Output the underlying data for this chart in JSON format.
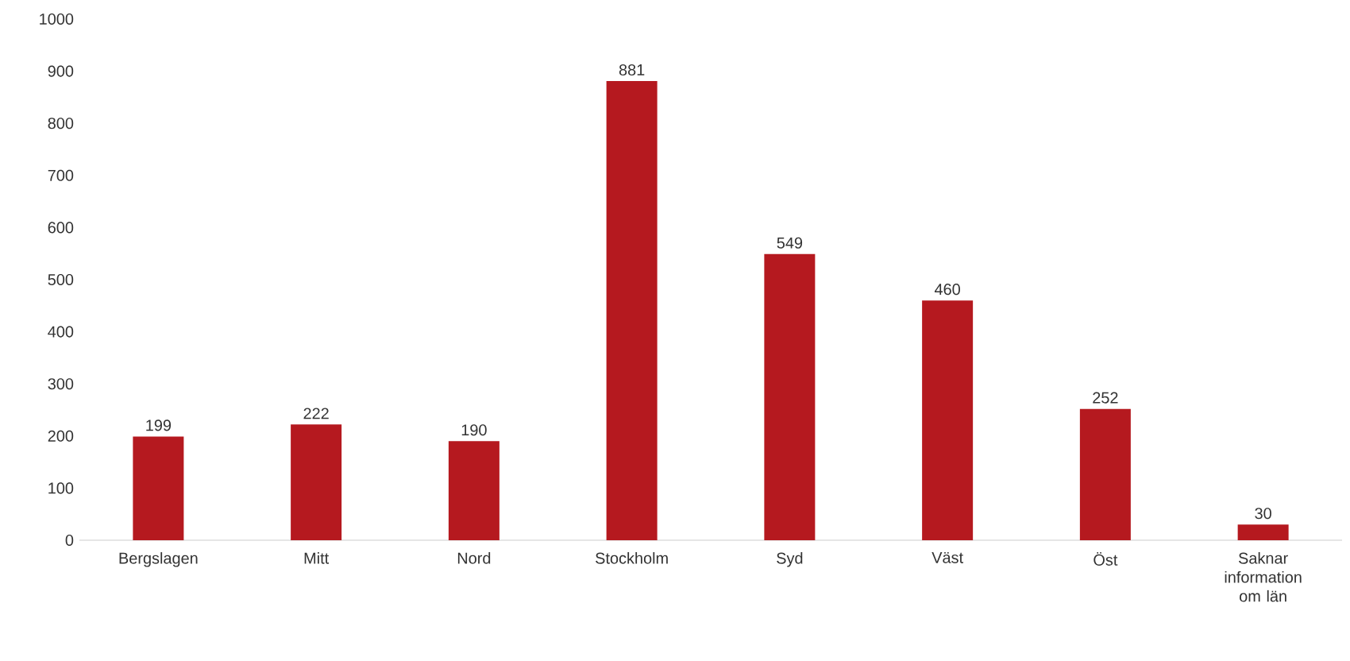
{
  "chart_data": {
    "type": "bar",
    "categories": [
      "Bergslagen",
      "Mitt",
      "Nord",
      "Stockholm",
      "Syd",
      "Väst",
      "Öst",
      "Saknar information om län"
    ],
    "values": [
      199,
      222,
      190,
      881,
      549,
      460,
      252,
      30
    ],
    "color": "#b5191f",
    "ylim": [
      0,
      1000
    ],
    "yticks": [
      0,
      100,
      200,
      300,
      400,
      500,
      600,
      700,
      800,
      900,
      1000
    ],
    "data_labels": true
  }
}
